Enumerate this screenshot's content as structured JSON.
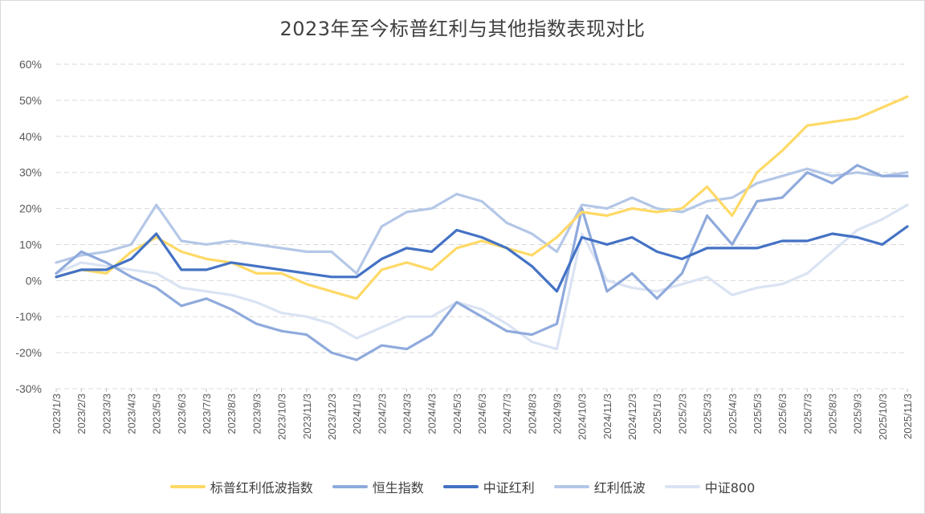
{
  "chart_data": {
    "type": "line",
    "title": "2023年至今标普红利与其他指数表现对比",
    "ylim": [
      -30,
      60
    ],
    "yticks": [
      "60%",
      "50%",
      "40%",
      "30%",
      "20%",
      "10%",
      "0%",
      "-10%",
      "-20%",
      "-30%"
    ],
    "ytick_values": [
      60,
      50,
      40,
      30,
      20,
      10,
      0,
      -10,
      -20,
      -30
    ],
    "x_labels": [
      "2023/1/3",
      "2023/2/3",
      "2023/3/3",
      "2023/4/3",
      "2023/5/3",
      "2023/6/3",
      "2023/7/3",
      "2023/8/3",
      "2023/9/3",
      "2023/10/3",
      "2023/11/3",
      "2023/12/3",
      "2024/1/3",
      "2024/2/3",
      "2024/3/3",
      "2024/4/3",
      "2024/5/3",
      "2024/6/3",
      "2024/7/3",
      "2024/8/3",
      "2024/9/3",
      "2024/10/3",
      "2024/11/3",
      "2024/12/3",
      "2025/1/3",
      "2025/2/3",
      "2025/3/3",
      "2025/4/3",
      "2025/5/3",
      "2025/6/3",
      "2025/7/3",
      "2025/8/3",
      "2025/9/3",
      "2025/10/3",
      "2025/11/3"
    ],
    "grid": "horizontal-dashed",
    "legend_position": "bottom",
    "series": [
      {
        "name": "标普红利低波指数",
        "color": "#FFD966",
        "values": [
          1,
          3,
          2,
          8,
          12,
          8,
          6,
          5,
          2,
          2,
          -1,
          -3,
          -5,
          3,
          5,
          3,
          9,
          11,
          9,
          7,
          12,
          19,
          18,
          20,
          19,
          20,
          26,
          18,
          30,
          36,
          43,
          44,
          45,
          48,
          51
        ]
      },
      {
        "name": "恒生指数",
        "color": "#8FAADC",
        "values": [
          2,
          8,
          5,
          1,
          -2,
          -7,
          -5,
          -8,
          -12,
          -14,
          -15,
          -20,
          -22,
          -18,
          -19,
          -15,
          -6,
          -10,
          -14,
          -15,
          -12,
          20,
          -3,
          2,
          -5,
          2,
          18,
          10,
          22,
          23,
          30,
          27,
          32,
          29,
          29
        ]
      },
      {
        "name": "中证红利",
        "color": "#4472C4",
        "values": [
          1,
          3,
          3,
          6,
          13,
          3,
          3,
          5,
          4,
          3,
          2,
          1,
          1,
          6,
          9,
          8,
          14,
          12,
          9,
          4,
          -3,
          12,
          10,
          12,
          8,
          6,
          9,
          9,
          9,
          11,
          11,
          13,
          12,
          10,
          15
        ]
      },
      {
        "name": "红利低波",
        "color": "#B4C7E7",
        "values": [
          5,
          7,
          8,
          10,
          21,
          11,
          10,
          11,
          10,
          9,
          8,
          8,
          2,
          15,
          19,
          20,
          24,
          22,
          16,
          13,
          8,
          21,
          20,
          23,
          20,
          19,
          22,
          23,
          27,
          29,
          31,
          29,
          30,
          29,
          30
        ]
      },
      {
        "name": "中证800",
        "color": "#DAE3F3",
        "values": [
          2,
          5,
          4,
          3,
          2,
          -2,
          -3,
          -4,
          -6,
          -9,
          -10,
          -12,
          -16,
          -13,
          -10,
          -10,
          -6,
          -8,
          -12,
          -17,
          -19,
          13,
          0,
          -2,
          -3,
          -1,
          1,
          -4,
          -2,
          -1,
          2,
          8,
          14,
          17,
          21
        ]
      }
    ]
  }
}
